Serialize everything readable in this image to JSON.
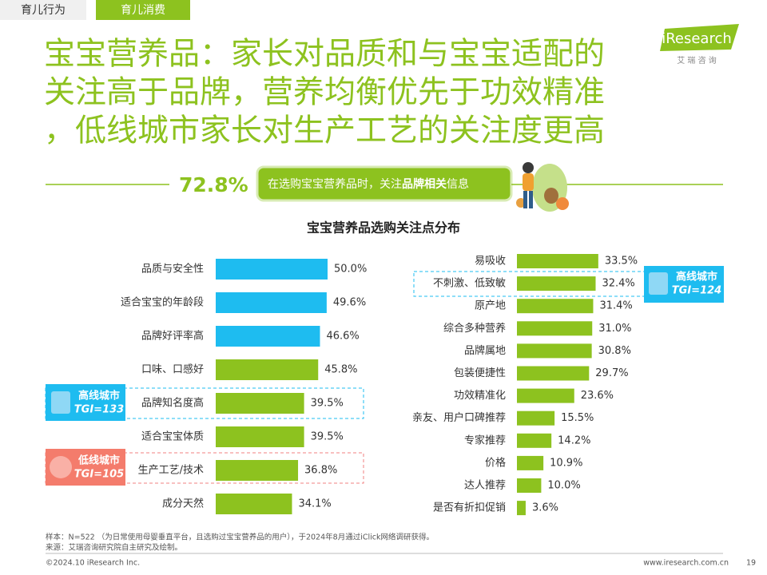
{
  "tabs": [
    "育儿行为",
    "育儿消费"
  ],
  "title_lines": [
    "宝宝营养品：家长对品质和与宝宝适配的",
    "关注高于品牌，营养均衡优先于功效精准",
    "，低线城市家长对生产工艺的关注度更高"
  ],
  "logo": {
    "name": "iResearch",
    "subtitle": "艾 瑞 咨 询"
  },
  "callout": {
    "value": "72.8%",
    "text_before": "在选购宝宝营养品时，关注",
    "text_bold": "品牌相关",
    "text_after": "信息"
  },
  "section_title": "宝宝营养品选购关注点分布",
  "chart_data": [
    {
      "type": "bar",
      "orientation": "horizontal",
      "categories": [
        "品质与安全性",
        "适合宝宝的年龄段",
        "品牌好评率高",
        "口味、口感好",
        "品牌知名度高",
        "适合宝宝体质",
        "生产工艺/技术",
        "成分天然"
      ],
      "values": [
        50.0,
        49.6,
        46.6,
        45.8,
        39.5,
        39.5,
        36.8,
        34.1
      ],
      "value_labels": [
        "50.0%",
        "49.6%",
        "46.6%",
        "45.8%",
        "39.5%",
        "39.5%",
        "36.8%",
        "34.1%"
      ],
      "colors": [
        "#1ebcf0",
        "#1ebcf0",
        "#1ebcf0",
        "#8dc21f",
        "#8dc21f",
        "#8dc21f",
        "#8dc21f",
        "#8dc21f"
      ]
    },
    {
      "type": "bar",
      "orientation": "horizontal",
      "categories": [
        "易吸收",
        "不刺激、低致敏",
        "原产地",
        "综合多种营养",
        "品牌属地",
        "包装便捷性",
        "功效精准化",
        "亲友、用户口碑推荐",
        "专家推荐",
        "价格",
        "达人推荐",
        "是否有折扣促销"
      ],
      "values": [
        33.5,
        32.4,
        31.4,
        31.0,
        30.8,
        29.7,
        23.6,
        15.5,
        14.2,
        10.9,
        10.0,
        3.6
      ],
      "value_labels": [
        "33.5%",
        "32.4%",
        "31.4%",
        "31.0%",
        "30.8%",
        "29.7%",
        "23.6%",
        "15.5%",
        "14.2%",
        "10.9%",
        "10.0%",
        "3.6%"
      ],
      "color": "#8dc21f"
    }
  ],
  "badges": [
    {
      "label": "高线城市",
      "tgi": "TGI=133"
    },
    {
      "label": "低线城市",
      "tgi": "TGI=105"
    },
    {
      "label": "高线城市",
      "tgi": "TGI=124"
    }
  ],
  "footer": {
    "sample": "样本：N=522 （为日常使用母婴垂直平台，且选购过宝宝营养品的用户），于2024年8月通过iClick网络调研获得。",
    "source": "来源：艾瑞咨询研究院自主研究及绘制。",
    "copyright": "©2024.10 iResearch Inc.",
    "website": "www.iresearch.com.cn",
    "page": "19"
  }
}
